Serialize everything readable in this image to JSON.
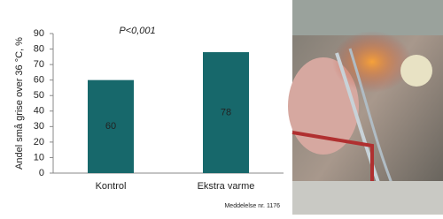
{
  "chart_data": {
    "type": "bar",
    "y_label": "Andel små grise over 36 °C, %",
    "annotation": "P<0,001",
    "footnote": "Meddelelse nr. 1176",
    "categories": [
      "Kontrol",
      "Ekstra varme"
    ],
    "values": [
      60,
      78
    ],
    "color": "#17686b",
    "ylim": [
      0,
      90
    ],
    "yticks": [
      0,
      10,
      20,
      30,
      40,
      50,
      60,
      70,
      80,
      90
    ]
  }
}
